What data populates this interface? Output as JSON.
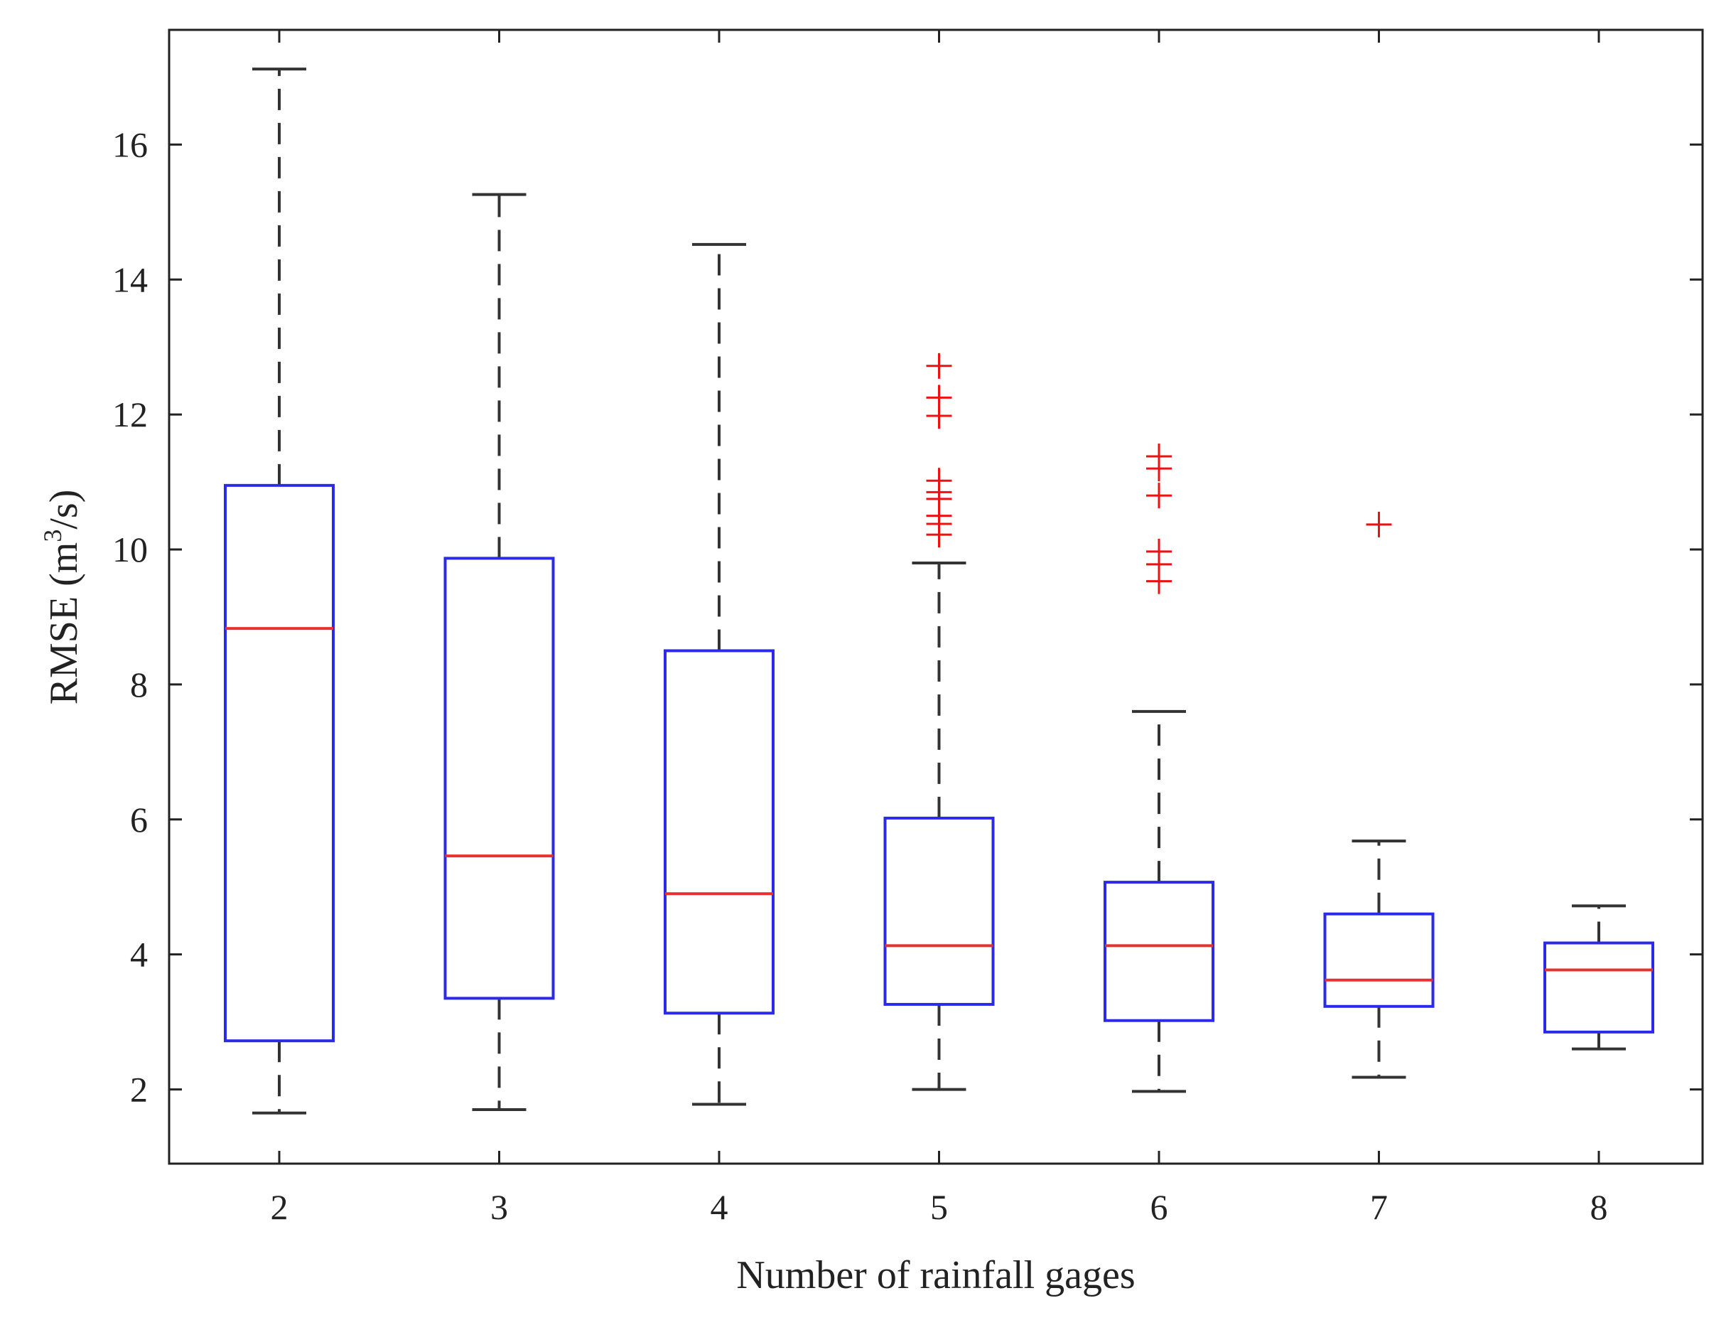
{
  "chart_data": {
    "type": "box",
    "title": "",
    "xlabel": "Number of rainfall gages",
    "ylabel": {
      "prefix": "RMSE (m",
      "superscript": "3",
      "suffix": "/s)"
    },
    "ylim": [
      0.9,
      17.7
    ],
    "yticks": [
      2,
      4,
      6,
      8,
      10,
      12,
      14,
      16
    ],
    "ytick_labels": [
      "2",
      "4",
      "6",
      "8",
      "10",
      "12",
      "14",
      "16"
    ],
    "categories": [
      "2",
      "3",
      "4",
      "5",
      "6",
      "7",
      "8"
    ],
    "boxes": [
      {
        "category": "2",
        "whisker_low": 1.65,
        "q1": 2.72,
        "median": 8.83,
        "q3": 10.95,
        "whisker_high": 17.12,
        "outliers": []
      },
      {
        "category": "3",
        "whisker_low": 1.7,
        "q1": 3.35,
        "median": 5.46,
        "q3": 9.87,
        "whisker_high": 15.26,
        "outliers": []
      },
      {
        "category": "4",
        "whisker_low": 1.78,
        "q1": 3.13,
        "median": 4.9,
        "q3": 8.5,
        "whisker_high": 14.52,
        "outliers": []
      },
      {
        "category": "5",
        "whisker_low": 2.0,
        "q1": 3.26,
        "median": 4.13,
        "q3": 6.02,
        "whisker_high": 9.8,
        "outliers": [
          10.22,
          10.38,
          10.5,
          10.75,
          10.85,
          11.02,
          11.98,
          12.25,
          12.72
        ]
      },
      {
        "category": "6",
        "whisker_low": 1.97,
        "q1": 3.02,
        "median": 4.13,
        "q3": 5.07,
        "whisker_high": 7.6,
        "outliers": [
          9.53,
          9.78,
          9.97,
          10.8,
          11.2,
          11.38
        ]
      },
      {
        "category": "7",
        "whisker_low": 2.18,
        "q1": 3.23,
        "median": 3.62,
        "q3": 4.6,
        "whisker_high": 5.68,
        "outliers": [
          10.37
        ]
      },
      {
        "category": "8",
        "whisker_low": 2.6,
        "q1": 2.85,
        "median": 3.77,
        "q3": 4.17,
        "whisker_high": 4.72,
        "outliers": []
      }
    ],
    "colors": {
      "box": "#2a2ae8",
      "median": "#e83030",
      "whisker": "#333333",
      "outlier": "#ee1111",
      "axis": "#222222"
    },
    "grid": false,
    "legend": "none"
  }
}
